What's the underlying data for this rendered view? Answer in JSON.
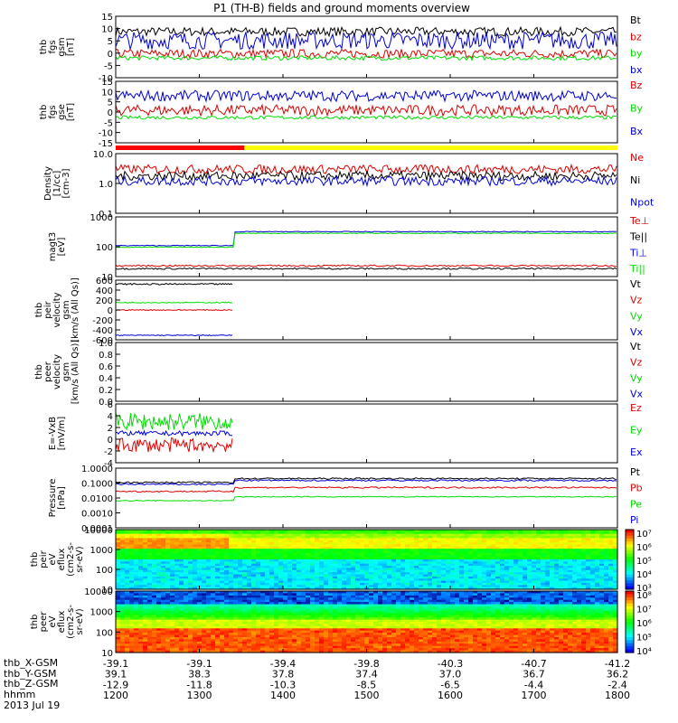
{
  "title": "P1 (TH-B) fields and ground moments overview",
  "colors": {
    "black": "#000000",
    "red": "#e00000",
    "green": "#00dd00",
    "blue": "#0000dd",
    "yellow": "#ffff00",
    "bar_red": "#ff0000"
  },
  "chart_data": [
    {
      "type": "line",
      "ylabel": [
        "thb",
        "fgs",
        "gsm",
        "[nT]"
      ],
      "yticks": [
        "15",
        "10",
        "5",
        "0",
        "-5",
        "-10"
      ],
      "ylim": [
        -12,
        16
      ],
      "series": [
        {
          "name": "Bt",
          "color": "#000000",
          "level": 9,
          "noise": 2
        },
        {
          "name": "bz",
          "color": "#e00000",
          "level": -1,
          "noise": 2
        },
        {
          "name": "by",
          "color": "#00dd00",
          "level": -3,
          "noise": 1
        },
        {
          "name": "bx",
          "color": "#0000dd",
          "level": 5,
          "noise": 4
        }
      ]
    },
    {
      "type": "line",
      "ylabel": [
        "thb",
        "fgs",
        "gse",
        "[nT]"
      ],
      "yticks": [
        "15",
        "10",
        "5",
        "0",
        "-5",
        "-10",
        "-15"
      ],
      "ylim": [
        -17,
        17
      ],
      "series": [
        {
          "name": "Bz",
          "color": "#e00000",
          "level": 1,
          "noise": 3
        },
        {
          "name": "By",
          "color": "#00dd00",
          "level": -3,
          "noise": 1
        },
        {
          "name": "Bx",
          "color": "#0000dd",
          "level": 9,
          "noise": 3
        }
      ]
    },
    {
      "type": "line",
      "ylabel": [
        "Density",
        "[1/cc]",
        "[cm-3]"
      ],
      "yticks": [
        "10.0",
        "1.0",
        "0.1"
      ],
      "log": true,
      "ylim": [
        0.1,
        10
      ],
      "series": [
        {
          "name": "Ne",
          "color": "#e00000",
          "level": 3,
          "noise": 0.3
        },
        {
          "name": "Ni",
          "color": "#000000",
          "level": 1.8,
          "noise": 0.3
        },
        {
          "name": "Npot",
          "color": "#0000dd",
          "level": 1.2,
          "noise": 0.3
        }
      ]
    },
    {
      "type": "line",
      "ylabel": [
        "magt3",
        "[eV]"
      ],
      "yticks": [
        "1000",
        "100",
        "10"
      ],
      "log": true,
      "ylim": [
        10,
        10000
      ],
      "series": [
        {
          "name": "Te⊥",
          "color": "#e00000",
          "level": 35,
          "noise": 0.08
        },
        {
          "name": "Te||",
          "color": "#000000",
          "level": 25,
          "noise": 0.08
        },
        {
          "name": "Ti⊥",
          "color": "#0000dd",
          "level": 1800,
          "noise": 0.04
        },
        {
          "name": "Ti||",
          "color": "#00dd00",
          "level": 1500,
          "noise": 0.04
        }
      ]
    },
    {
      "type": "line",
      "ylabel": [
        "thb",
        "peir",
        "velocity",
        "gsm",
        "[km/s (All Qs)]"
      ],
      "yticks": [
        "600",
        "400",
        "200",
        "0",
        "-200",
        "-400",
        "-600"
      ],
      "ylim": [
        -600,
        600
      ],
      "series": [
        {
          "name": "Vt",
          "color": "#000000",
          "level": 520,
          "noise": 15
        },
        {
          "name": "Vz",
          "color": "#e00000",
          "level": 0,
          "noise": 10
        },
        {
          "name": "Vy",
          "color": "#00dd00",
          "level": 150,
          "noise": 10
        },
        {
          "name": "Vx",
          "color": "#0000dd",
          "level": -510,
          "noise": 10
        }
      ]
    },
    {
      "type": "line",
      "ylabel": [
        "thb",
        "peer",
        "velocity",
        "gsm",
        "[km/s (All Qs)]"
      ],
      "yticks": [
        "1.0",
        "0.8",
        "0.6",
        "0.4",
        "0.2",
        "0.0"
      ],
      "ylim": [
        0,
        1
      ],
      "series": [
        {
          "name": "Vt",
          "color": "#000000"
        },
        {
          "name": "Vz",
          "color": "#e00000"
        },
        {
          "name": "Vy",
          "color": "#00dd00"
        },
        {
          "name": "Vx",
          "color": "#0000dd"
        }
      ]
    },
    {
      "type": "line",
      "ylabel": [
        "E=-VxB",
        "[mV/m]"
      ],
      "yticks": [
        "6",
        "4",
        "2",
        "0",
        "-2",
        "-4"
      ],
      "ylim": [
        -4,
        6
      ],
      "series": [
        {
          "name": "Ez",
          "color": "#e00000",
          "level": -1,
          "noise": 1.2
        },
        {
          "name": "Ey",
          "color": "#00dd00",
          "level": 3,
          "noise": 1.5
        },
        {
          "name": "Ex",
          "color": "#0000dd",
          "level": 1,
          "noise": 0.4
        }
      ]
    },
    {
      "type": "line",
      "ylabel": [
        "Pressure",
        "[nPa]"
      ],
      "yticks": [
        "1.0000",
        "0.1000",
        "0.0100",
        "0.0010",
        "0.0001"
      ],
      "log": true,
      "ylim": [
        0.0001,
        1
      ],
      "series": [
        {
          "name": "Pt",
          "color": "#000000",
          "level": 0.2,
          "noise": 0.1
        },
        {
          "name": "Pb",
          "color": "#e00000",
          "level": 0.05,
          "noise": 0.1
        },
        {
          "name": "Pe",
          "color": "#00dd00",
          "level": 0.012,
          "noise": 0.06
        },
        {
          "name": "Pi",
          "color": "#0000dd",
          "level": 0.15,
          "noise": 0.1
        }
      ]
    },
    {
      "type": "heatmap",
      "ylabel": [
        "thb",
        "peir",
        "eV",
        "eflux",
        "(cm2-s-",
        "sr-eV)"
      ],
      "yticks": [
        "10000",
        "1000",
        "100",
        "10"
      ],
      "colorbar": [
        "10⁷",
        "10⁶",
        "10⁵",
        "10⁴",
        "10³"
      ]
    },
    {
      "type": "heatmap",
      "ylabel": [
        "thb",
        "peer",
        "eV",
        "eflux",
        "(cm2-s-",
        "sr-eV)"
      ],
      "yticks": [
        "10000",
        "1000",
        "100",
        "10"
      ],
      "colorbar": [
        "10⁸",
        "10⁷",
        "10⁶",
        "10⁵",
        "10⁴"
      ]
    }
  ],
  "ephemeris": {
    "labels": [
      "thb_X-GSM",
      "thb_Y-GSM",
      "thb_Z-GSM",
      "hhmm",
      "2013 Jul 19"
    ],
    "rows": [
      [
        "-39.1",
        "-39.1",
        "-39.4",
        "-39.8",
        "-40.3",
        "-40.7",
        "-41.2"
      ],
      [
        "39.1",
        "38.3",
        "37.8",
        "37.4",
        "37.0",
        "36.7",
        "36.2"
      ],
      [
        "-12.9",
        "-11.8",
        "-10.3",
        "-8.5",
        "-6.5",
        "-4.4",
        "-2.4"
      ],
      [
        "1200",
        "1300",
        "1400",
        "1500",
        "1600",
        "1700",
        "1800"
      ]
    ]
  }
}
